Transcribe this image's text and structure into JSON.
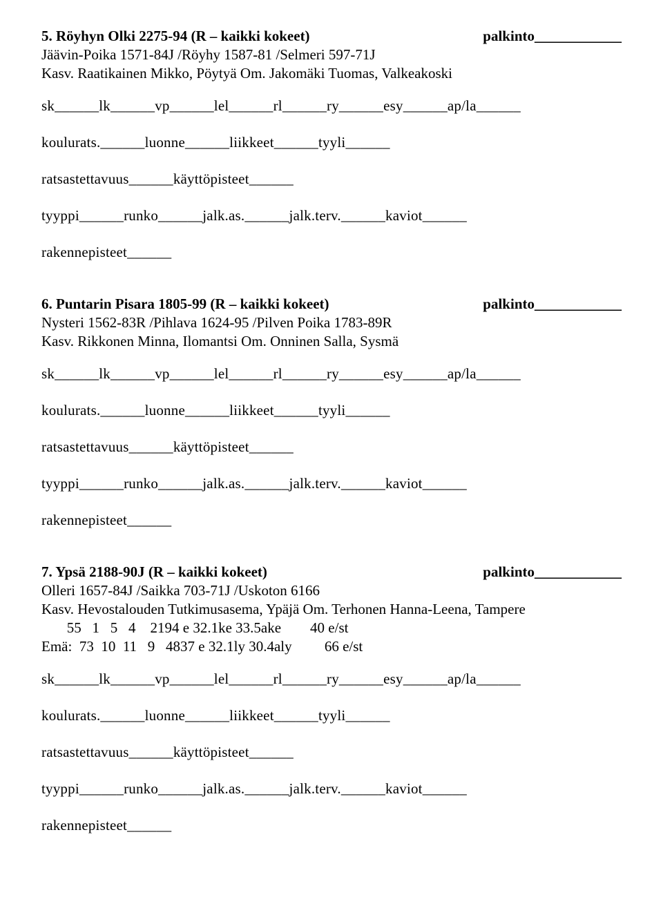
{
  "entries": [
    {
      "number": "5.",
      "title": "Röyhyn Olki 2275-94 (R – kaikki kokeet)",
      "prize_label": "palkinto____________",
      "pedigree": "Jäävin-Poika 1571-84J /Röyhy 1587-81 /Selmeri 597-71J",
      "breeder_owner": "Kasv. Raatikainen Mikko, Pöytyä  Om. Jakomäki Tuomas, Valkeakoski",
      "stats_lines": []
    },
    {
      "number": "6.",
      "title": "Puntarin Pisara 1805-99 (R – kaikki kokeet)",
      "prize_label": "palkinto____________",
      "pedigree": "Nysteri 1562-83R /Pihlava 1624-95 /Pilven Poika 1783-89R",
      "breeder_owner": "Kasv. Rikkonen Minna, Ilomantsi  Om. Onninen Salla, Sysmä",
      "stats_lines": []
    },
    {
      "number": "7.",
      "title": "Ypsä 2188-90J (R – kaikki kokeet)",
      "prize_label": "palkinto____________",
      "pedigree": "Olleri 1657-84J /Saikka 703-71J /Uskoton 6166",
      "breeder_owner": "Kasv. Hevostalouden Tutkimusasema, Ypäjä  Om. Terhonen Hanna-Leena, Tampere",
      "stats_lines": [
        "       55   1   5   4    2194 e 32.1ke 33.5ake        40 e/st",
        "Emä:  73  10  11   9   4837 e 32.1ly 30.4aly         66 e/st"
      ]
    }
  ],
  "form": {
    "line1": "sk______lk______vp______lel______rl______ry______esy______ap/la______",
    "line2": "koulurats.______luonne______liikkeet______tyyli______",
    "line3": "ratsastettavuus______käyttöpisteet______",
    "line4": "tyyppi______runko______jalk.as.______jalk.terv.______kaviot______",
    "line5": "rakennepisteet______"
  }
}
